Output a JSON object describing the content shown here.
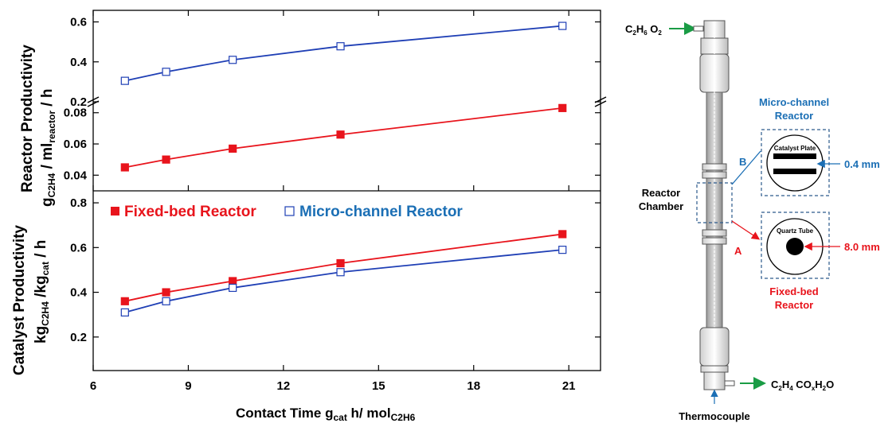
{
  "colors": {
    "fixed_bed": "#e8141c",
    "micro_channel": "#1f3fb5",
    "label_blue": "#1b6fb5",
    "label_red": "#e8141c",
    "arrow_green": "#1a9c45",
    "dashed_box": "#2c5a8c"
  },
  "chart_data": [
    {
      "panel": "top",
      "type": "line",
      "ylabel_main": "Reactor Productivity",
      "ylabel_unit": "gC2H4 / mlreactor / h",
      "xlim": [
        6,
        22
      ],
      "broken_y_axis": true,
      "upper_segment": {
        "ylim": [
          0.2,
          0.65
        ],
        "ticks": [
          "0.2",
          "0.4",
          "0.6"
        ]
      },
      "lower_segment": {
        "ylim": [
          0.032,
          0.087
        ],
        "ticks": [
          "0.04",
          "0.06",
          "0.08"
        ]
      },
      "series": [
        {
          "name": "Micro-channel Reactor",
          "marker": "open-square",
          "color": "#1f3fb5",
          "segment": "upper",
          "x": [
            7.0,
            8.3,
            10.4,
            13.8,
            20.8
          ],
          "y": [
            0.305,
            0.35,
            0.41,
            0.478,
            0.58
          ]
        },
        {
          "name": "Fixed-bed Reactor",
          "marker": "filled-square",
          "color": "#e8141c",
          "segment": "lower",
          "x": [
            7.0,
            8.3,
            10.4,
            13.8,
            20.8
          ],
          "y": [
            0.045,
            0.05,
            0.057,
            0.066,
            0.083
          ]
        }
      ]
    },
    {
      "panel": "bottom",
      "type": "line",
      "ylabel_main": "Catalyst Productivity",
      "ylabel_unit": "kgC2H4 /kgcat / h",
      "xlabel": "Contact Time gcat h/ molC2H6",
      "xlim": [
        6,
        22
      ],
      "ylim": [
        0.05,
        0.85
      ],
      "yticks": [
        "0.2",
        "0.4",
        "0.6",
        "0.8"
      ],
      "xticks": [
        "6",
        "9",
        "12",
        "15",
        "18",
        "21"
      ],
      "legend": {
        "position": "top",
        "entries": [
          "Fixed-bed Reactor",
          "Micro-channel Reactor"
        ]
      },
      "series": [
        {
          "name": "Fixed-bed Reactor",
          "marker": "filled-square",
          "color": "#e8141c",
          "x": [
            7.0,
            8.3,
            10.4,
            13.8,
            20.8
          ],
          "y": [
            0.36,
            0.4,
            0.45,
            0.53,
            0.66
          ]
        },
        {
          "name": "Micro-channel Reactor",
          "marker": "open-square",
          "color": "#1f3fb5",
          "x": [
            7.0,
            8.3,
            10.4,
            13.8,
            20.8
          ],
          "y": [
            0.31,
            0.36,
            0.42,
            0.49,
            0.59
          ]
        }
      ]
    }
  ],
  "schematic": {
    "inlet_label": "C2H6  O2",
    "outlet_label": "C2H4  COxH2O",
    "chamber_label_line1": "Reactor",
    "chamber_label_line2": "Chamber",
    "thermocouple_label": "Thermocouple",
    "label_a": "A",
    "label_b": "B",
    "micro_title_line1": "Micro-channel",
    "micro_title_line2": "Reactor",
    "catalyst_plate_label": "Catalyst Plate",
    "micro_gap": "0.4 mm",
    "fixed_title_line1": "Fixed-bed",
    "fixed_title_line2": "Reactor",
    "quartz_tube_label": "Quartz Tube",
    "fixed_diameter": "8.0 mm"
  }
}
